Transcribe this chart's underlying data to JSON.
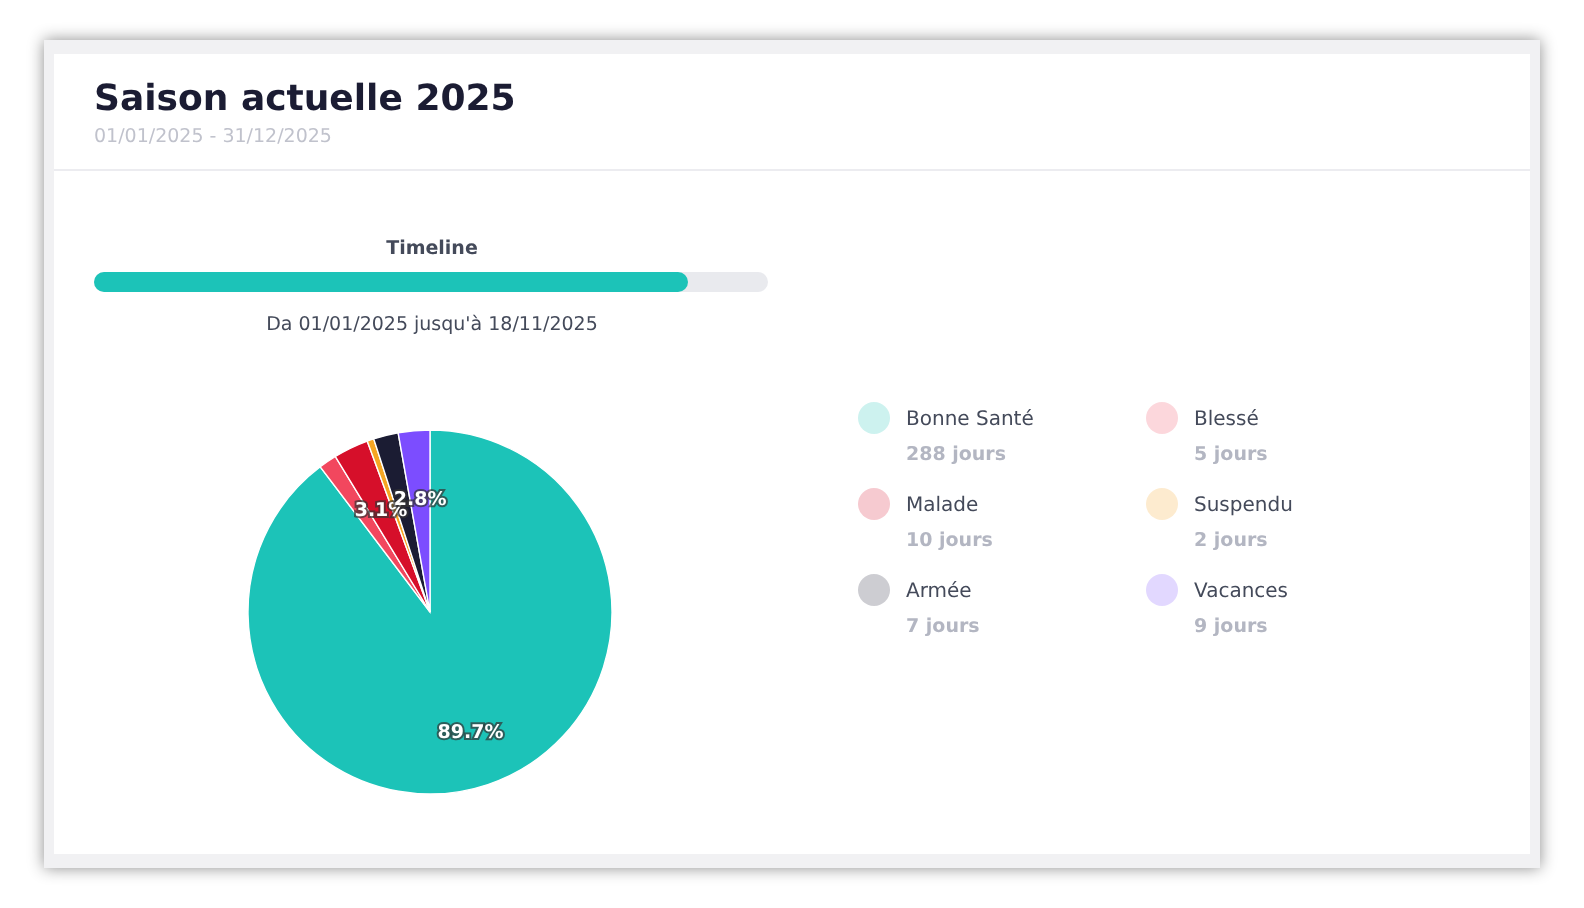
{
  "chart_data": {
    "type": "pie",
    "title": "Saison actuelle 2025",
    "subtitle": "01/01/2025 - 31/12/2025",
    "categories": [
      "Bonne Santé",
      "Blessé",
      "Malade",
      "Suspendu",
      "Armée",
      "Vacances"
    ],
    "values": [
      89.7,
      1.6,
      3.1,
      0.6,
      2.2,
      2.8
    ],
    "colors": [
      "#1cc3b8",
      "#f2475e",
      "#d60f2a",
      "#f5a623",
      "#1b1c33",
      "#7c4dff"
    ],
    "value_labels": [
      "89.7%",
      null,
      "3.1%",
      null,
      null,
      "2.8%"
    ],
    "annotations": [
      "Timeline",
      "Da 01/01/2025 jusqu'à 18/11/2025",
      "288 jours",
      "5 jours",
      "10 jours",
      "2 jours",
      "7 jours",
      "9 jours"
    ],
    "legend": "right"
  }
}
